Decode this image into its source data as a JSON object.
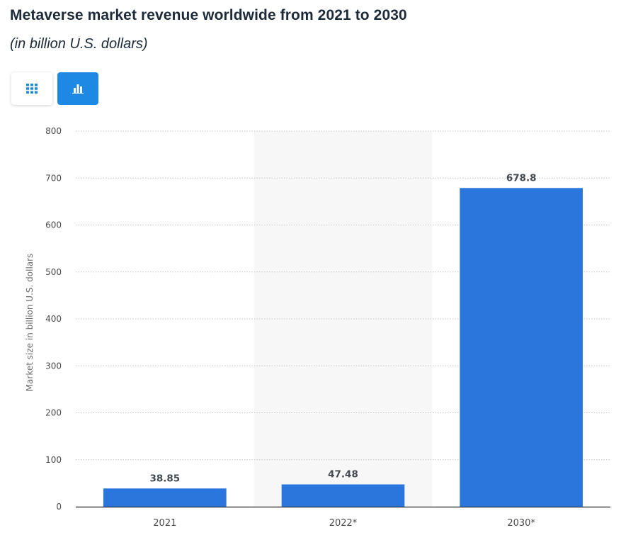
{
  "header": {
    "title": "Metaverse market revenue worldwide from 2021 to 2030",
    "subtitle": "(in billion U.S. dollars)"
  },
  "view_toggle": {
    "table_icon": "grid-icon",
    "chart_icon": "bar-chart-icon",
    "active": "chart",
    "active_color": "#1e88e5"
  },
  "chart_data": {
    "type": "bar",
    "categories": [
      "2021",
      "2022*",
      "2030*"
    ],
    "values": [
      38.85,
      47.48,
      678.8
    ],
    "value_labels": [
      "38.85",
      "47.48",
      "678.8"
    ],
    "title": "Metaverse market revenue worldwide from 2021 to 2030",
    "subtitle": "(in billion U.S. dollars)",
    "xlabel": "",
    "ylabel": "Market size in billion U.S. dollars",
    "ylim": [
      0,
      800
    ],
    "yticks": [
      0,
      100,
      200,
      300,
      400,
      500,
      600,
      700,
      800
    ],
    "highlighted_category": "2022*",
    "bar_color": "#2a76dd",
    "grid": true,
    "legend": "none"
  }
}
